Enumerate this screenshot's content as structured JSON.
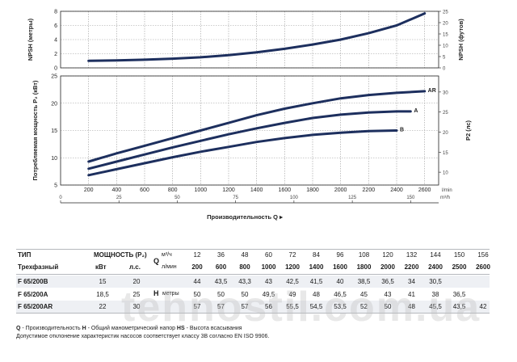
{
  "chart_data": [
    {
      "type": "line",
      "ylabel": "NPSH (метры)",
      "y2label": "NPSH (футов)",
      "ylim": [
        0,
        8
      ],
      "yticks": [
        0,
        2,
        4,
        6,
        8
      ],
      "y2lim": [
        0,
        25
      ],
      "y2ticks": [
        0,
        5,
        10,
        15,
        20,
        25
      ],
      "xlim": [
        0,
        2700
      ],
      "grid": true,
      "series": [
        {
          "x": [
            200,
            400,
            600,
            800,
            1000,
            1200,
            1400,
            1600,
            1800,
            2000,
            2200,
            2400,
            2600
          ],
          "y": [
            1.0,
            1.05,
            1.15,
            1.3,
            1.5,
            1.8,
            2.2,
            2.7,
            3.3,
            4.0,
            4.9,
            6.0,
            7.7
          ]
        }
      ]
    },
    {
      "type": "line",
      "ylabel": "Потребляемая мощность P₂ (кВт)",
      "y2label": "P2 (лс)",
      "xlabel": "Производительность Q",
      "x_unit": "l/min",
      "x2_unit": "m³/h",
      "xlim": [
        0,
        2700
      ],
      "xticks": [
        200,
        400,
        600,
        800,
        1000,
        1200,
        1400,
        1600,
        1800,
        2000,
        2200,
        2400,
        2600
      ],
      "x2ticks": [
        0,
        25,
        50,
        75,
        100,
        125,
        150
      ],
      "ylim": [
        5,
        25
      ],
      "yticks": [
        5,
        10,
        15,
        20,
        25
      ],
      "y2ticks": [
        10,
        15,
        20,
        25,
        30
      ],
      "grid": true,
      "series": [
        {
          "name": "AR",
          "x": [
            200,
            400,
            600,
            800,
            1000,
            1200,
            1400,
            1600,
            1800,
            2000,
            2200,
            2400,
            2600
          ],
          "y": [
            9.3,
            10.8,
            12.2,
            13.6,
            15.0,
            16.4,
            17.8,
            19.0,
            20.0,
            20.9,
            21.5,
            21.9,
            22.2
          ]
        },
        {
          "name": "A",
          "x": [
            200,
            400,
            600,
            800,
            1000,
            1200,
            1400,
            1600,
            1800,
            2000,
            2200,
            2400,
            2500
          ],
          "y": [
            8.0,
            9.3,
            10.6,
            11.9,
            13.1,
            14.3,
            15.4,
            16.4,
            17.3,
            17.9,
            18.3,
            18.5,
            18.5
          ]
        },
        {
          "name": "B",
          "x": [
            200,
            400,
            600,
            800,
            1000,
            1200,
            1400,
            1600,
            1800,
            2000,
            2200,
            2400
          ],
          "y": [
            6.8,
            7.9,
            9.0,
            10.1,
            11.1,
            12.0,
            12.9,
            13.6,
            14.2,
            14.6,
            14.9,
            15.0
          ]
        }
      ]
    }
  ],
  "table": {
    "type_header": "ТИП",
    "type_sub": "Трехфазный",
    "power_header": "МОЩНОСТЬ (P₂)",
    "kw": "кВт",
    "hp": "л.с.",
    "q_label": "Q",
    "q_unit_m3": "м³/ч",
    "q_unit_l": "л/мин",
    "h_label": "H",
    "h_unit": "метры",
    "q_m3": [
      "12",
      "36",
      "48",
      "60",
      "72",
      "84",
      "96",
      "108",
      "120",
      "132",
      "144",
      "150",
      "156"
    ],
    "q_l": [
      "200",
      "600",
      "800",
      "1000",
      "1200",
      "1400",
      "1600",
      "1800",
      "2000",
      "2200",
      "2400",
      "2500",
      "2600"
    ],
    "rows": [
      {
        "model": "F 65/200B",
        "kw": "15",
        "hp": "20",
        "h": [
          "44",
          "43,5",
          "43,3",
          "43",
          "42,5",
          "41,5",
          "40",
          "38,5",
          "36,5",
          "34",
          "30,5",
          "",
          ""
        ]
      },
      {
        "model": "F 65/200A",
        "kw": "18,5",
        "hp": "25",
        "h": [
          "50",
          "50",
          "50",
          "49,5",
          "49",
          "48",
          "46,5",
          "45",
          "43",
          "41",
          "38",
          "36,5",
          ""
        ]
      },
      {
        "model": "F 65/200AR",
        "kw": "22",
        "hp": "30",
        "h": [
          "57",
          "57",
          "57",
          "56",
          "55,5",
          "54,5",
          "53,5",
          "52",
          "50",
          "48",
          "45,5",
          "43,5",
          "42"
        ]
      }
    ]
  },
  "notes": {
    "q_key": "Q",
    "q_text": " - Производительность ",
    "h_key": "H",
    "h_text": " - Общий манометрический напор ",
    "hs_key": "HS",
    "hs_text": " - Высота всасывания",
    "line2": "Допустимое отклонение характеристик насосов соответствует классу 3B согласно EN ISO 9906."
  },
  "watermark": "tehnostil.com.ua",
  "colors": {
    "curve": "#1d2f5e",
    "row_shade": "#eef0f4"
  }
}
